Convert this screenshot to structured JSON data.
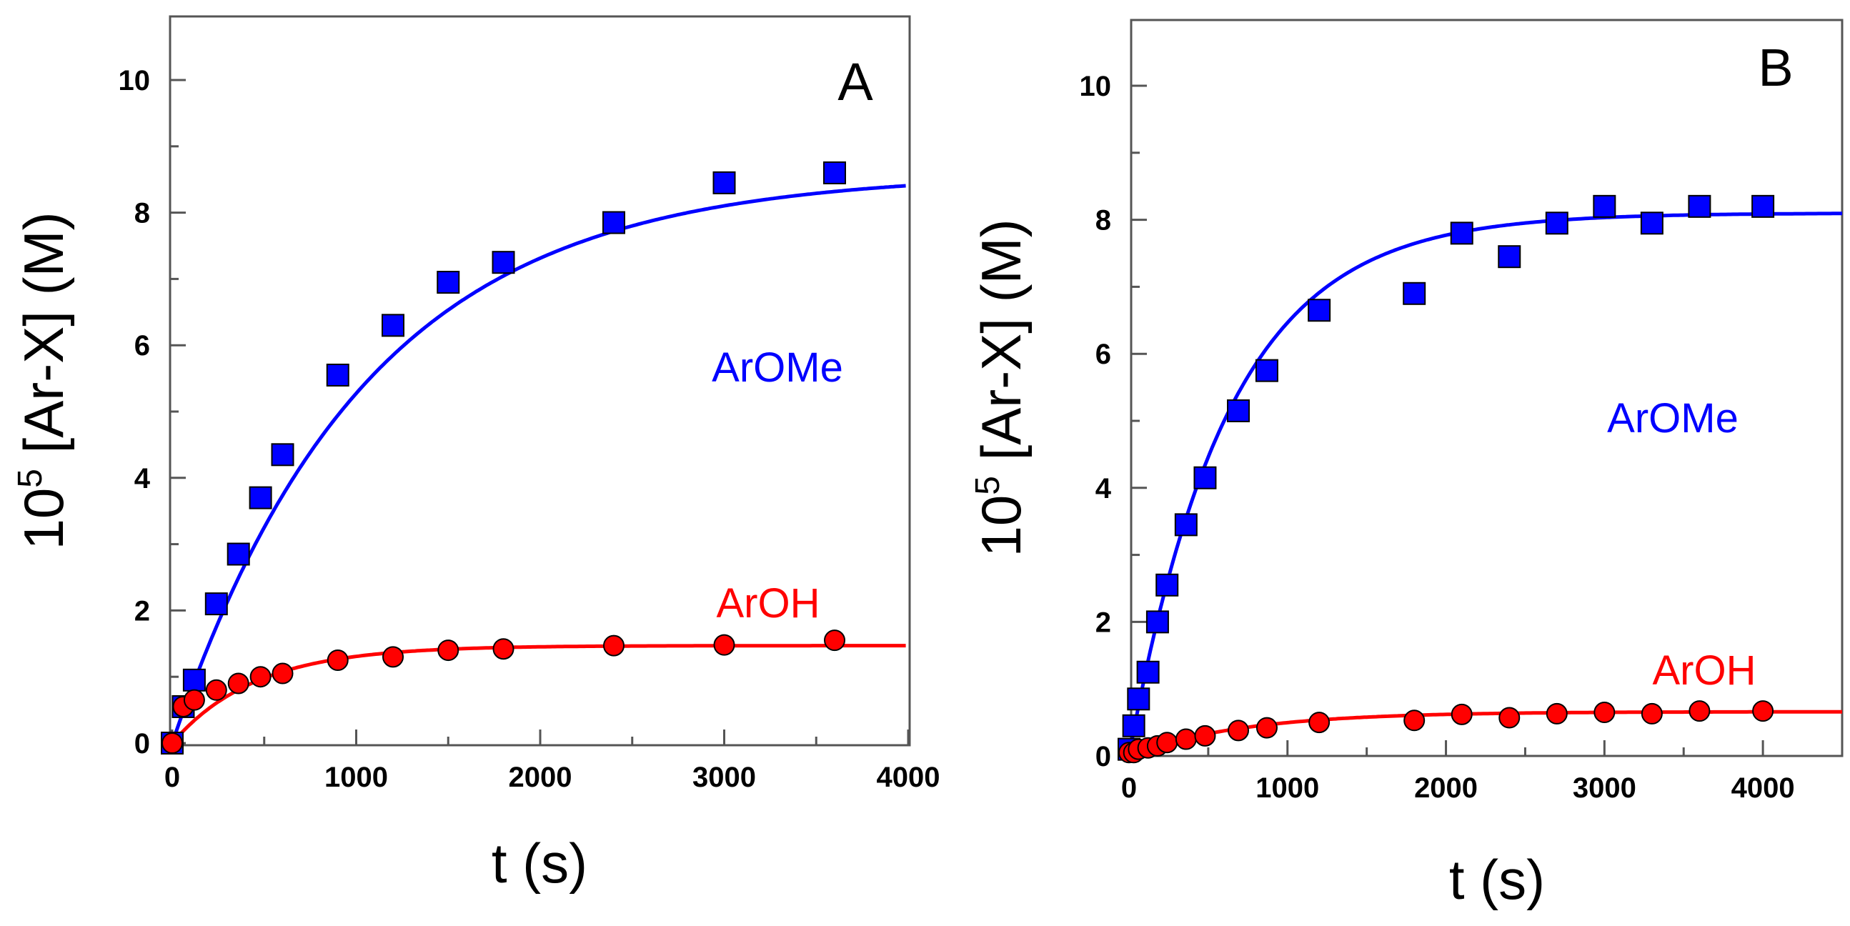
{
  "chart_data": [
    {
      "type": "scatter",
      "panel": "A",
      "xlabel": "t (s)",
      "ylabel_prefix": "10",
      "ylabel_exponent": "5",
      "ylabel_suffix": " [Ar-X] (M)",
      "xlim": [
        0,
        4000
      ],
      "ylim": [
        0,
        11
      ],
      "xticks": [
        0,
        1000,
        2000,
        3000,
        4000
      ],
      "yticks": [
        0,
        2,
        4,
        6,
        8,
        10
      ],
      "colors": {
        "ArOMe": "#0000ff",
        "ArOH": "#ff0000"
      },
      "series": [
        {
          "name": "ArOMe",
          "marker": "square",
          "x": [
            0,
            60,
            120,
            240,
            360,
            480,
            600,
            900,
            1200,
            1500,
            1800,
            2400,
            3000,
            3600
          ],
          "y": [
            0.0,
            0.55,
            0.95,
            2.1,
            2.85,
            3.7,
            4.35,
            5.55,
            6.3,
            6.95,
            7.25,
            7.85,
            8.45,
            8.6
          ],
          "fit": {
            "model": "A*(1-exp(-k*t))",
            "A": 8.6,
            "k": 0.00095
          }
        },
        {
          "name": "ArOH",
          "marker": "circle",
          "x": [
            0,
            60,
            120,
            240,
            360,
            480,
            600,
            900,
            1200,
            1500,
            1800,
            2400,
            3000,
            3600
          ],
          "y": [
            0.0,
            0.55,
            0.65,
            0.8,
            0.9,
            1.0,
            1.05,
            1.25,
            1.3,
            1.4,
            1.42,
            1.47,
            1.48,
            1.55
          ],
          "fit": {
            "model": "A*(1-exp(-k*t))",
            "A": 1.47,
            "k": 0.0022
          }
        }
      ]
    },
    {
      "type": "scatter",
      "panel": "B",
      "xlabel": "t (s)",
      "ylabel_prefix": "10",
      "ylabel_exponent": "5",
      "ylabel_suffix": " [Ar-X] (M)",
      "xlim": [
        0,
        4500
      ],
      "ylim": [
        0,
        11
      ],
      "xticks": [
        0,
        1000,
        2000,
        3000,
        4000
      ],
      "yticks": [
        0,
        2,
        4,
        6,
        8,
        10
      ],
      "colors": {
        "ArOMe": "#0000ff",
        "ArOH": "#ff0000"
      },
      "series": [
        {
          "name": "ArOMe",
          "marker": "square",
          "x": [
            0,
            30,
            60,
            120,
            180,
            240,
            360,
            480,
            690,
            870,
            1200,
            1800,
            2100,
            2400,
            2700,
            3000,
            3300,
            3600,
            4000
          ],
          "y": [
            0.1,
            0.45,
            0.85,
            1.25,
            2.0,
            2.55,
            3.45,
            4.15,
            5.15,
            5.75,
            6.65,
            6.9,
            7.8,
            7.45,
            7.95,
            8.2,
            7.95,
            8.2,
            8.2
          ],
          "fit": {
            "model": "A*(1-exp(-k*t))",
            "A": 8.1,
            "k": 0.0016
          }
        },
        {
          "name": "ArOH",
          "marker": "circle",
          "x": [
            0,
            30,
            60,
            120,
            180,
            240,
            360,
            480,
            690,
            870,
            1200,
            1800,
            2100,
            2400,
            2700,
            3000,
            3300,
            3600,
            4000
          ],
          "y": [
            0.05,
            0.05,
            0.1,
            0.12,
            0.15,
            0.2,
            0.25,
            0.3,
            0.38,
            0.42,
            0.5,
            0.53,
            0.62,
            0.57,
            0.63,
            0.65,
            0.63,
            0.67,
            0.67
          ],
          "fit": {
            "model": "A*(1-exp(-k*t))",
            "A": 0.66,
            "k": 0.0014
          }
        }
      ]
    }
  ]
}
